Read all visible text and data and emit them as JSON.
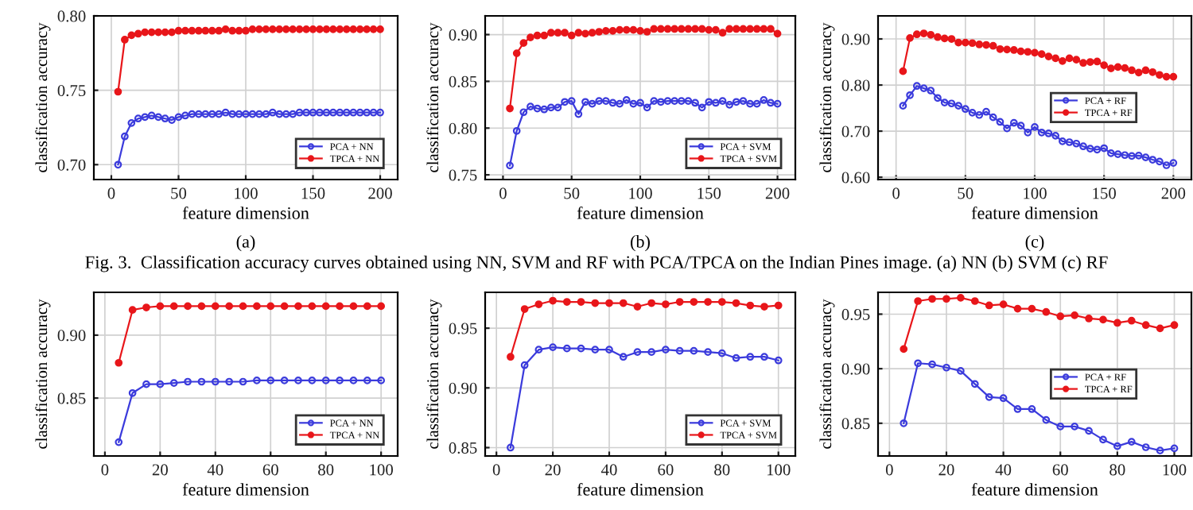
{
  "chart_data": [
    {
      "type": "line",
      "subtitle": "(a)",
      "xlabel": "feature dimension",
      "ylabel": "classification accuracy",
      "x": [
        5,
        10,
        15,
        20,
        25,
        30,
        35,
        40,
        45,
        50,
        55,
        60,
        65,
        70,
        75,
        80,
        85,
        90,
        95,
        100,
        105,
        110,
        115,
        120,
        125,
        130,
        135,
        140,
        145,
        150,
        155,
        160,
        165,
        170,
        175,
        180,
        185,
        190,
        195,
        200
      ],
      "xlim": [
        -13,
        213
      ],
      "xticks": [
        0,
        50,
        100,
        150,
        200
      ],
      "ylim": [
        0.69,
        0.8
      ],
      "yticks": [
        {
          "value": 0.7,
          "label": "0.70"
        },
        {
          "value": 0.75,
          "label": "0.75"
        },
        {
          "value": 0.8,
          "label": "0.80"
        }
      ],
      "grid": true,
      "legend": "bottom right",
      "marker": "circle",
      "annotations": [
        "Fig. 3.  Classification accuracy curves obtained using NN, SVM and RF with PCA/TPCA on the Indian Pines image. (a) NN (b) SVM (c) RF"
      ],
      "series": [
        {
          "name": "PCA + NN",
          "color": "#3b3bdc",
          "values": [
            0.7,
            0.719,
            0.728,
            0.731,
            0.732,
            0.733,
            0.732,
            0.731,
            0.73,
            0.732,
            0.733,
            0.734,
            0.734,
            0.734,
            0.734,
            0.734,
            0.735,
            0.734,
            0.734,
            0.734,
            0.734,
            0.734,
            0.734,
            0.735,
            0.734,
            0.734,
            0.734,
            0.735,
            0.735,
            0.735,
            0.735,
            0.735,
            0.735,
            0.735,
            0.735,
            0.735,
            0.735,
            0.735,
            0.735,
            0.735
          ]
        },
        {
          "name": "TPCA + NN",
          "color": "#e8161a",
          "values": [
            0.749,
            0.784,
            0.787,
            0.788,
            0.789,
            0.789,
            0.789,
            0.789,
            0.789,
            0.79,
            0.79,
            0.79,
            0.79,
            0.79,
            0.79,
            0.79,
            0.791,
            0.79,
            0.79,
            0.79,
            0.791,
            0.791,
            0.791,
            0.791,
            0.791,
            0.791,
            0.791,
            0.791,
            0.791,
            0.791,
            0.791,
            0.791,
            0.791,
            0.791,
            0.791,
            0.791,
            0.791,
            0.791,
            0.791,
            0.791
          ]
        }
      ]
    },
    {
      "type": "line",
      "subtitle": "(b)",
      "xlabel": "feature dimension",
      "ylabel": "classification accuracy",
      "x": [
        5,
        10,
        15,
        20,
        25,
        30,
        35,
        40,
        45,
        50,
        55,
        60,
        65,
        70,
        75,
        80,
        85,
        90,
        95,
        100,
        105,
        110,
        115,
        120,
        125,
        130,
        135,
        140,
        145,
        150,
        155,
        160,
        165,
        170,
        175,
        180,
        185,
        190,
        195,
        200
      ],
      "xlim": [
        -13,
        213
      ],
      "xticks": [
        0,
        50,
        100,
        150,
        200
      ],
      "ylim": [
        0.745,
        0.92
      ],
      "yticks": [
        {
          "value": 0.75,
          "label": "0.75"
        },
        {
          "value": 0.8,
          "label": "0.80"
        },
        {
          "value": 0.85,
          "label": "0.85"
        },
        {
          "value": 0.9,
          "label": "0.90"
        }
      ],
      "grid": true,
      "legend": "bottom right",
      "marker": "circle",
      "series": [
        {
          "name": "PCA + SVM",
          "color": "#3b3bdc",
          "values": [
            0.76,
            0.797,
            0.817,
            0.823,
            0.821,
            0.82,
            0.822,
            0.822,
            0.828,
            0.829,
            0.815,
            0.828,
            0.826,
            0.829,
            0.829,
            0.827,
            0.826,
            0.83,
            0.826,
            0.827,
            0.822,
            0.829,
            0.828,
            0.829,
            0.829,
            0.829,
            0.829,
            0.827,
            0.822,
            0.828,
            0.827,
            0.829,
            0.825,
            0.828,
            0.829,
            0.826,
            0.826,
            0.83,
            0.827,
            0.826
          ]
        },
        {
          "name": "TPCA + SVM",
          "color": "#e8161a",
          "values": [
            0.821,
            0.88,
            0.891,
            0.897,
            0.899,
            0.899,
            0.902,
            0.902,
            0.902,
            0.899,
            0.902,
            0.901,
            0.902,
            0.903,
            0.904,
            0.904,
            0.905,
            0.905,
            0.905,
            0.904,
            0.903,
            0.906,
            0.906,
            0.906,
            0.906,
            0.906,
            0.906,
            0.906,
            0.906,
            0.905,
            0.905,
            0.902,
            0.906,
            0.906,
            0.906,
            0.906,
            0.906,
            0.906,
            0.906,
            0.901
          ]
        }
      ]
    },
    {
      "type": "line",
      "subtitle": "(c)",
      "xlabel": "feature dimension",
      "ylabel": "classification accuracy",
      "x": [
        5,
        10,
        15,
        20,
        25,
        30,
        35,
        40,
        45,
        50,
        55,
        60,
        65,
        70,
        75,
        80,
        85,
        90,
        95,
        100,
        105,
        110,
        115,
        120,
        125,
        130,
        135,
        140,
        145,
        150,
        155,
        160,
        165,
        170,
        175,
        180,
        185,
        190,
        195,
        200
      ],
      "xlim": [
        -13,
        213
      ],
      "xticks": [
        0,
        50,
        100,
        150,
        200
      ],
      "ylim": [
        0.595,
        0.95
      ],
      "yticks": [
        {
          "value": 0.6,
          "label": "0.60"
        },
        {
          "value": 0.7,
          "label": "0.70"
        },
        {
          "value": 0.8,
          "label": "0.80"
        },
        {
          "value": 0.9,
          "label": "0.90"
        }
      ],
      "grid": true,
      "legend": "right",
      "marker": "circle",
      "series": [
        {
          "name": "PCA + RF",
          "color": "#3b3bdc",
          "values": [
            0.755,
            0.778,
            0.798,
            0.793,
            0.788,
            0.772,
            0.762,
            0.76,
            0.755,
            0.748,
            0.74,
            0.735,
            0.742,
            0.73,
            0.72,
            0.706,
            0.718,
            0.712,
            0.697,
            0.709,
            0.697,
            0.695,
            0.69,
            0.678,
            0.676,
            0.673,
            0.667,
            0.662,
            0.66,
            0.663,
            0.652,
            0.65,
            0.648,
            0.646,
            0.647,
            0.643,
            0.638,
            0.634,
            0.626,
            0.631
          ]
        },
        {
          "name": "TPCA + RF",
          "color": "#e8161a",
          "values": [
            0.83,
            0.902,
            0.91,
            0.912,
            0.909,
            0.904,
            0.901,
            0.9,
            0.892,
            0.892,
            0.891,
            0.888,
            0.887,
            0.885,
            0.878,
            0.877,
            0.876,
            0.873,
            0.872,
            0.87,
            0.867,
            0.862,
            0.858,
            0.852,
            0.858,
            0.855,
            0.848,
            0.85,
            0.851,
            0.843,
            0.836,
            0.839,
            0.837,
            0.832,
            0.827,
            0.832,
            0.828,
            0.822,
            0.818,
            0.818
          ]
        }
      ]
    },
    {
      "type": "line",
      "xlabel": "feature dimension",
      "ylabel": "classification accuracy",
      "x": [
        5,
        10,
        15,
        20,
        25,
        30,
        35,
        40,
        45,
        50,
        55,
        60,
        65,
        70,
        75,
        80,
        85,
        90,
        95,
        100
      ],
      "xlim": [
        -4,
        106
      ],
      "xticks": [
        0,
        20,
        40,
        60,
        80,
        100
      ],
      "ylim": [
        0.804,
        0.934
      ],
      "yticks": [
        {
          "value": 0.85,
          "label": "0.85"
        },
        {
          "value": 0.9,
          "label": "0.90"
        }
      ],
      "grid": true,
      "legend": "bottom right",
      "marker": "circle",
      "series": [
        {
          "name": "PCA + NN",
          "color": "#3b3bdc",
          "values": [
            0.815,
            0.854,
            0.861,
            0.861,
            0.862,
            0.863,
            0.863,
            0.863,
            0.863,
            0.863,
            0.864,
            0.864,
            0.864,
            0.864,
            0.864,
            0.864,
            0.864,
            0.864,
            0.864,
            0.864
          ]
        },
        {
          "name": "TPCA + NN",
          "color": "#e8161a",
          "values": [
            0.878,
            0.92,
            0.922,
            0.923,
            0.923,
            0.923,
            0.923,
            0.923,
            0.923,
            0.923,
            0.923,
            0.923,
            0.923,
            0.923,
            0.923,
            0.923,
            0.923,
            0.923,
            0.923,
            0.923
          ]
        }
      ]
    },
    {
      "type": "line",
      "xlabel": "feature dimension",
      "ylabel": "classification accuracy",
      "x": [
        5,
        10,
        15,
        20,
        25,
        30,
        35,
        40,
        45,
        50,
        55,
        60,
        65,
        70,
        75,
        80,
        85,
        90,
        95,
        100
      ],
      "xlim": [
        -4,
        106
      ],
      "xticks": [
        0,
        20,
        40,
        60,
        80,
        100
      ],
      "ylim": [
        0.843,
        0.98
      ],
      "yticks": [
        {
          "value": 0.85,
          "label": "0.85"
        },
        {
          "value": 0.9,
          "label": "0.90"
        },
        {
          "value": 0.95,
          "label": "0.95"
        }
      ],
      "grid": true,
      "legend": "bottom right",
      "marker": "circle",
      "series": [
        {
          "name": "PCA + SVM",
          "color": "#3b3bdc",
          "values": [
            0.85,
            0.919,
            0.932,
            0.934,
            0.933,
            0.933,
            0.932,
            0.932,
            0.926,
            0.93,
            0.93,
            0.932,
            0.931,
            0.931,
            0.93,
            0.929,
            0.925,
            0.926,
            0.926,
            0.923
          ]
        },
        {
          "name": "TPCA + SVM",
          "color": "#e8161a",
          "values": [
            0.926,
            0.966,
            0.97,
            0.973,
            0.972,
            0.972,
            0.971,
            0.971,
            0.971,
            0.968,
            0.971,
            0.97,
            0.972,
            0.972,
            0.972,
            0.972,
            0.971,
            0.969,
            0.968,
            0.969
          ]
        }
      ]
    },
    {
      "type": "line",
      "xlabel": "feature dimension",
      "ylabel": "classification accuracy",
      "x": [
        5,
        10,
        15,
        20,
        25,
        30,
        35,
        40,
        45,
        50,
        55,
        60,
        65,
        70,
        75,
        80,
        85,
        90,
        95,
        100
      ],
      "xlim": [
        -4,
        106
      ],
      "xticks": [
        0,
        20,
        40,
        60,
        80,
        100
      ],
      "ylim": [
        0.82,
        0.97
      ],
      "yticks": [
        {
          "value": 0.85,
          "label": "0.85"
        },
        {
          "value": 0.9,
          "label": "0.90"
        },
        {
          "value": 0.95,
          "label": "0.95"
        }
      ],
      "grid": true,
      "legend": "right",
      "marker": "circle",
      "series": [
        {
          "name": "PCA + RF",
          "color": "#3b3bdc",
          "values": [
            0.85,
            0.905,
            0.904,
            0.901,
            0.898,
            0.886,
            0.874,
            0.873,
            0.863,
            0.863,
            0.853,
            0.847,
            0.847,
            0.843,
            0.835,
            0.829,
            0.833,
            0.828,
            0.825,
            0.827
          ]
        },
        {
          "name": "TPCA + RF",
          "color": "#e8161a",
          "values": [
            0.918,
            0.962,
            0.964,
            0.964,
            0.965,
            0.962,
            0.958,
            0.959,
            0.955,
            0.955,
            0.952,
            0.948,
            0.949,
            0.946,
            0.945,
            0.942,
            0.944,
            0.94,
            0.937,
            0.94
          ]
        }
      ]
    }
  ]
}
